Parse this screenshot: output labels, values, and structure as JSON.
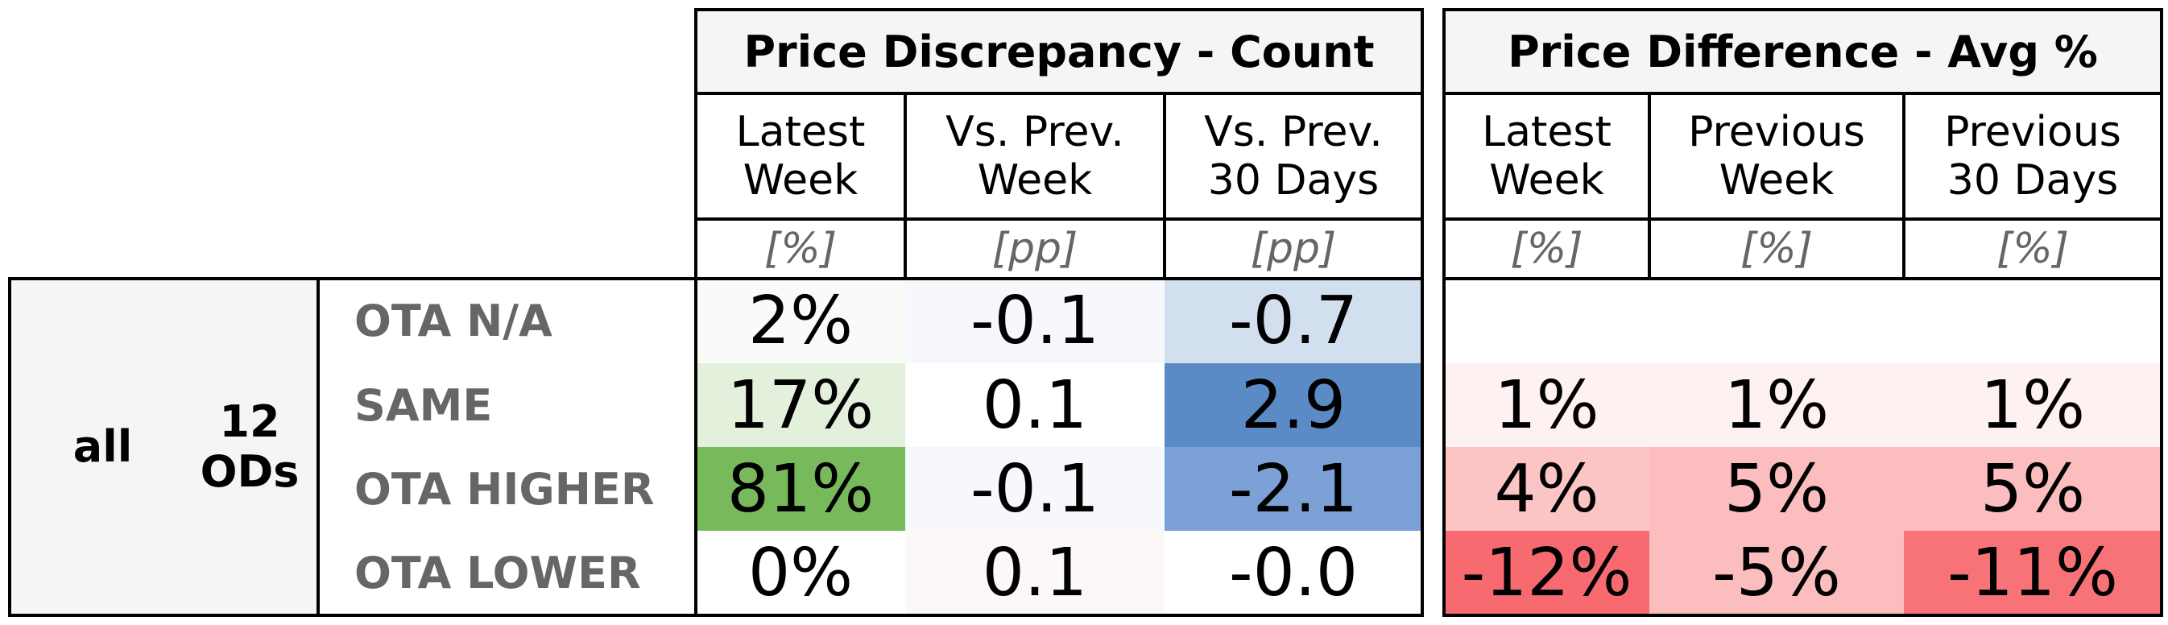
{
  "chart_data": {
    "type": "table",
    "group": {
      "segment": "all",
      "ods": "12\nODs"
    },
    "rows": [
      "OTA N/A",
      "SAME",
      "OTA HIGHER",
      "OTA LOWER"
    ],
    "panels": [
      {
        "title": "Price Discrepancy - Count",
        "columns": [
          {
            "header": "Latest\nWeek",
            "unit": "[%]",
            "values": [
              "2%",
              "17%",
              "81%",
              "0%"
            ]
          },
          {
            "header": "Vs. Prev.\nWeek",
            "unit": "[pp]",
            "values": [
              "-0.1",
              "0.1",
              "-0.1",
              "0.1"
            ]
          },
          {
            "header": "Vs. Prev.\n30 Days",
            "unit": "[pp]",
            "values": [
              "-0.7",
              "2.9",
              "-2.1",
              "-0.0"
            ]
          }
        ]
      },
      {
        "title": "Price Difference - Avg %",
        "columns": [
          {
            "header": "Latest\nWeek",
            "unit": "[%]",
            "values": [
              "",
              "1%",
              "4%",
              "-12%"
            ]
          },
          {
            "header": "Previous\nWeek",
            "unit": "[%]",
            "values": [
              "",
              "1%",
              "5%",
              "-5%"
            ]
          },
          {
            "header": "Previous\n30 Days",
            "unit": "[%]",
            "values": [
              "",
              "1%",
              "5%",
              "-11%"
            ]
          }
        ]
      }
    ],
    "cell_colors": {
      "panel0": [
        [
          "#f8fbf7",
          "#f6f8fb",
          "#d2dfef"
        ],
        [
          "#e3f0dc",
          "#ffffff",
          "#5b8bc6"
        ],
        [
          "#78ba5b",
          "#f6f8fb",
          "#7ba1d6"
        ],
        [
          "#ffffff",
          "#fdf8f8",
          "#ffffff"
        ]
      ],
      "panel1": [
        [
          "#ffffff",
          "#ffffff",
          "#ffffff"
        ],
        [
          "#fdf1f1",
          "#fdf1f1",
          "#fdf1f1"
        ],
        [
          "#fbc5c6",
          "#fbbdbd",
          "#fbbdbd"
        ],
        [
          "#f76b70",
          "#fbbdbd",
          "#f77377"
        ]
      ]
    }
  }
}
